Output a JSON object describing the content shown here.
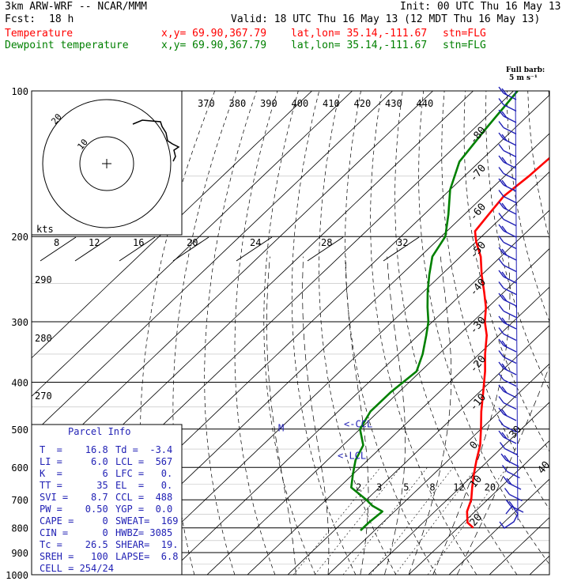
{
  "header": {
    "model": "3km ARW-WRF -- NCAR/MMM",
    "init": "Init: 00 UTC Thu 16 May 13",
    "fcst_label": "Fcst:",
    "fcst_value": "18 h",
    "valid": "Valid: 18 UTC Thu 16 May 13 (12 MDT Thu 16 May 13)"
  },
  "legend": [
    {
      "name": "Temperature",
      "coords": "x,y= 69.90,367.79",
      "latlon": "lat,lon= 35.14,-111.67",
      "stn": "stn=FLG",
      "color": "#ff0000"
    },
    {
      "name": "Dewpoint temperature",
      "coords": "x,y= 69.90,367.79",
      "latlon": "lat,lon= 35.14,-111.67",
      "stn": "stn=FLG",
      "color": "#008000"
    }
  ],
  "barb_note": {
    "line1": "Full barb:",
    "line2": "5 m s⁻¹"
  },
  "chart_data": {
    "type": "line",
    "title": "",
    "y_axis": {
      "label": "",
      "scale": "log-pressure",
      "range": [
        1000,
        100
      ],
      "ticks": [
        100,
        200,
        300,
        400,
        500,
        600,
        700,
        800,
        900,
        1000
      ]
    },
    "x_axis": {
      "label": "",
      "scale": "skewed temperature (C)"
    },
    "isotherm_labels": [
      -80,
      -70,
      -60,
      -50,
      -40,
      -30,
      -20,
      -10,
      0,
      10,
      20,
      30,
      40
    ],
    "theta_labels": [
      370,
      380,
      390,
      400,
      410,
      420,
      430,
      440
    ],
    "theta_left_labels": [
      290,
      280,
      270
    ],
    "mixing_ratio_labels": [
      2,
      3,
      5,
      8,
      12,
      20
    ],
    "hodograph_speed_labels": [
      "8",
      "12",
      "16",
      "20",
      "24",
      "28",
      "32"
    ],
    "hodograph": {
      "unit_label": "kts",
      "ring_labels": [
        "10",
        "20"
      ]
    },
    "parcel_levels": [
      {
        "label": "LCL",
        "p": 568
      },
      {
        "label": "CCL",
        "p": 488
      },
      {
        "label": "M",
        "p": 494
      }
    ],
    "series": [
      {
        "name": "Temperature",
        "color": "#ff0000",
        "points": [
          [
            800,
            23.8
          ],
          [
            780,
            21
          ],
          [
            740,
            18
          ],
          [
            700,
            16
          ],
          [
            660,
            13
          ],
          [
            620,
            10
          ],
          [
            580,
            7
          ],
          [
            540,
            4
          ],
          [
            500,
            0
          ],
          [
            460,
            -4.5
          ],
          [
            420,
            -9
          ],
          [
            380,
            -14
          ],
          [
            350,
            -18.5
          ],
          [
            320,
            -23
          ],
          [
            300,
            -27
          ],
          [
            280,
            -30.5
          ],
          [
            260,
            -35
          ],
          [
            240,
            -40
          ],
          [
            220,
            -45
          ],
          [
            205,
            -50
          ],
          [
            195,
            -53
          ],
          [
            180,
            -54
          ],
          [
            165,
            -55
          ],
          [
            150,
            -54
          ],
          [
            135,
            -53.5
          ],
          [
            120,
            -54
          ],
          [
            110,
            -55
          ],
          [
            100,
            -57
          ]
        ]
      },
      {
        "name": "Dewpoint temperature",
        "color": "#008000",
        "points": [
          [
            810,
            -3.5
          ],
          [
            780,
            -3.5
          ],
          [
            740,
            -3
          ],
          [
            720,
            -7
          ],
          [
            700,
            -10
          ],
          [
            660,
            -17
          ],
          [
            620,
            -20
          ],
          [
            580,
            -23
          ],
          [
            540,
            -25
          ],
          [
            500,
            -30
          ],
          [
            460,
            -32
          ],
          [
            420,
            -32
          ],
          [
            380,
            -31
          ],
          [
            350,
            -34
          ],
          [
            320,
            -38
          ],
          [
            300,
            -41
          ],
          [
            280,
            -45
          ],
          [
            260,
            -49
          ],
          [
            240,
            -53
          ],
          [
            220,
            -57
          ],
          [
            200,
            -59
          ],
          [
            180,
            -64
          ],
          [
            160,
            -70
          ],
          [
            140,
            -75
          ],
          [
            120,
            -77
          ],
          [
            100,
            -79
          ]
        ]
      }
    ]
  },
  "parcel_info": {
    "title": "Parcel Info",
    "rows": [
      [
        "T  =    16.8",
        "Td =  -3.4"
      ],
      [
        "LI =     6.0",
        "LCL =  567"
      ],
      [
        "K  =       6",
        "LFC =   0."
      ],
      [
        "TT =      35",
        "EL  =   0."
      ],
      [
        "SVI =    8.7",
        "CCL =  488"
      ],
      [
        "PW =    0.50",
        "YGP =  0.0"
      ],
      [
        "CAPE =     0",
        "SWEAT=  169"
      ],
      [
        "CIN =      0",
        "HWBZ= 3085"
      ],
      [
        "Tc =    26.5",
        "SHEAR=  19."
      ],
      [
        "SREH =   100",
        "LAPSE=  6.8"
      ],
      [
        "CELL = 254/24",
        ""
      ]
    ]
  }
}
